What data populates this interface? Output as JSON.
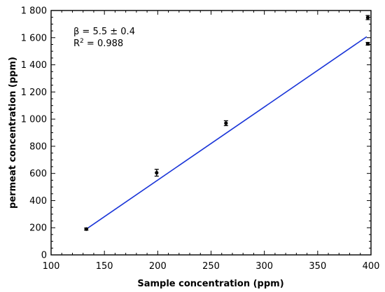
{
  "chart_data": {
    "type": "scatter",
    "title": "",
    "xlabel": "Sample concentration (ppm)",
    "ylabel": "permeat concentration (ppm)",
    "xlim": [
      100,
      400
    ],
    "ylim": [
      0,
      1800
    ],
    "xticks": [
      100,
      150,
      200,
      250,
      300,
      350,
      400
    ],
    "yticks": [
      0,
      200,
      400,
      600,
      800,
      1000,
      1200,
      1400,
      1600,
      1800
    ],
    "xtick_labels": [
      "100",
      "150",
      "200",
      "250",
      "300",
      "350",
      "400"
    ],
    "ytick_labels": [
      "0",
      "200",
      "400",
      "600",
      "800",
      "1 000",
      "1 200",
      "1 400",
      "1 600",
      "1 800"
    ],
    "grid": false,
    "series": [
      {
        "x": [
          133,
          199,
          264,
          397,
          397
        ],
        "y": [
          190,
          605,
          970,
          1748,
          1555
        ],
        "yerr": [
          8,
          25,
          18,
          15,
          10
        ],
        "color": "#000000"
      }
    ],
    "fit_line": {
      "x": [
        133,
        396
      ],
      "y": [
        190,
        1607
      ],
      "color": "#1a35d8"
    },
    "annotations": {
      "beta": "β = 5.5 ± 0.4",
      "r2_prefix": "R",
      "r2_sup": "2",
      "r2_value": " = 0.988"
    }
  }
}
